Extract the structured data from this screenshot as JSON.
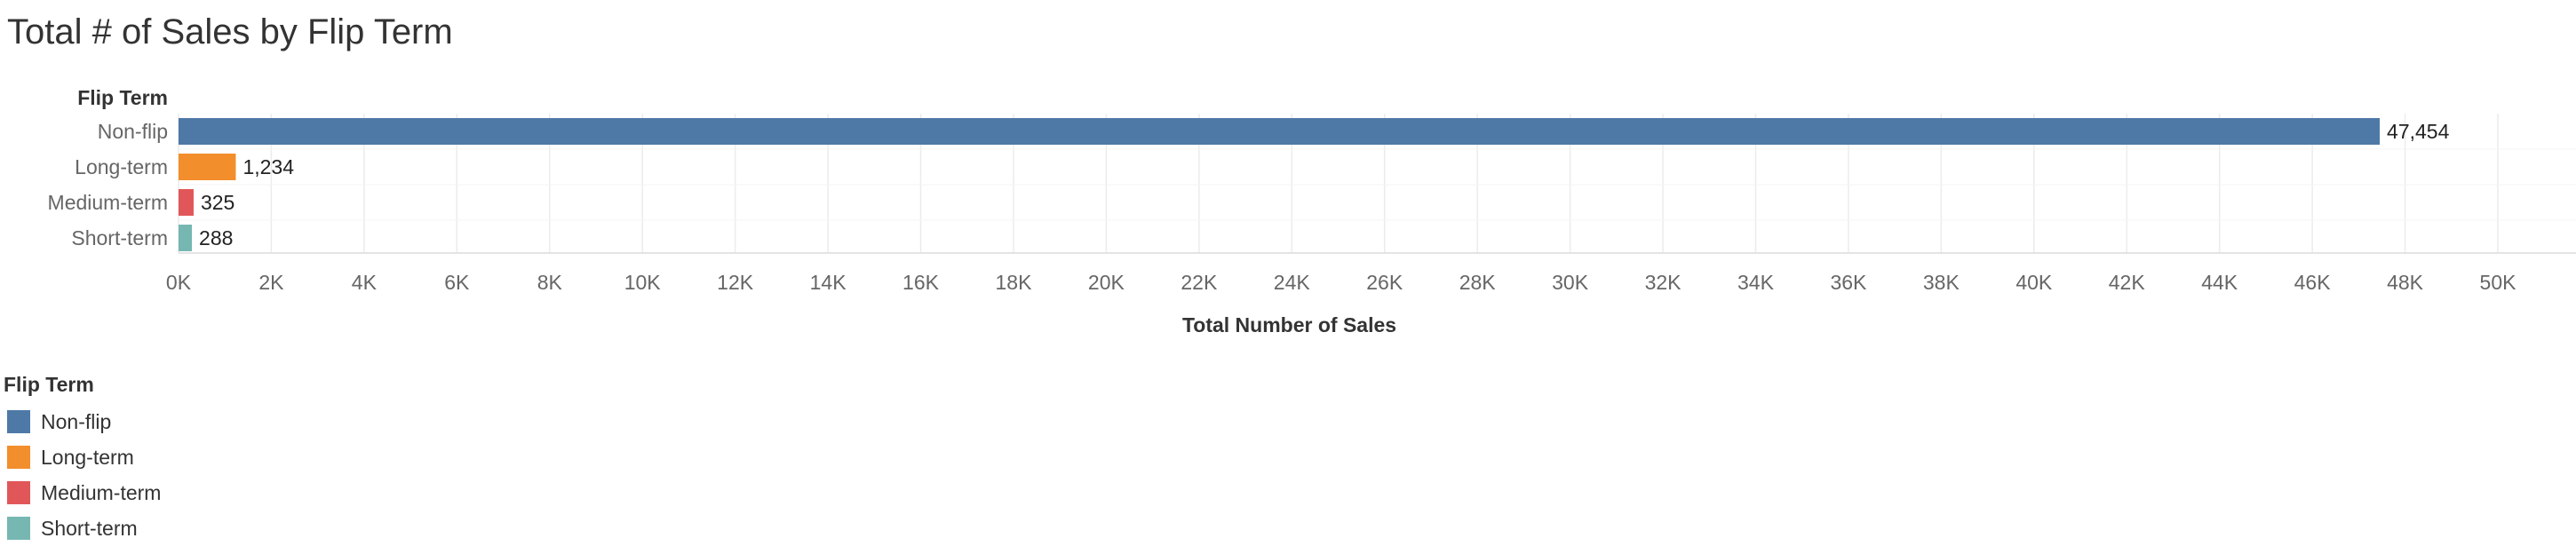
{
  "chart_data": {
    "type": "bar",
    "orientation": "horizontal",
    "title": "Total # of Sales by Flip Term",
    "row_header": "Flip Term",
    "xlabel": "Total Number of Sales",
    "categories": [
      "Non-flip",
      "Long-term",
      "Medium-term",
      "Short-term"
    ],
    "values": [
      47454,
      1234,
      325,
      288
    ],
    "value_labels": [
      "47,454",
      "1,234",
      "325",
      "288"
    ],
    "colors": [
      "#4e79a7",
      "#f28e2b",
      "#e15759",
      "#76b7b2"
    ],
    "xlim": [
      0,
      50000
    ],
    "ticks": [
      0,
      2000,
      4000,
      6000,
      8000,
      10000,
      12000,
      14000,
      16000,
      18000,
      20000,
      22000,
      24000,
      26000,
      28000,
      30000,
      32000,
      34000,
      36000,
      38000,
      40000,
      42000,
      44000,
      46000,
      48000,
      50000
    ],
    "tick_labels": [
      "0K",
      "2K",
      "4K",
      "6K",
      "8K",
      "10K",
      "12K",
      "14K",
      "16K",
      "18K",
      "20K",
      "22K",
      "24K",
      "26K",
      "28K",
      "30K",
      "32K",
      "34K",
      "36K",
      "38K",
      "40K",
      "42K",
      "44K",
      "46K",
      "48K",
      "50K"
    ],
    "grid": true,
    "legend_position": "bottom-left"
  },
  "legend": {
    "title": "Flip Term",
    "items": [
      {
        "label": "Non-flip",
        "color": "#4e79a7"
      },
      {
        "label": "Long-term",
        "color": "#f28e2b"
      },
      {
        "label": "Medium-term",
        "color": "#e15759"
      },
      {
        "label": "Short-term",
        "color": "#76b7b2"
      }
    ]
  }
}
